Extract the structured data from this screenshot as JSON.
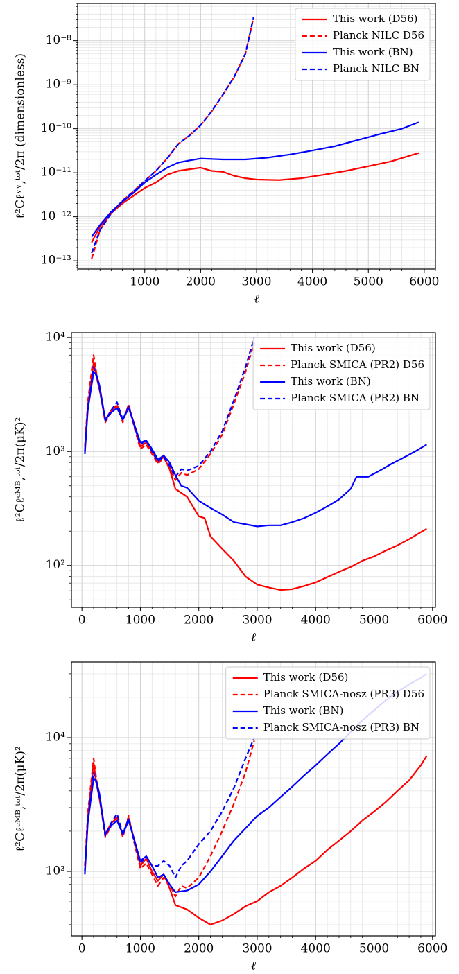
{
  "chart_data": [
    {
      "type": "line",
      "log_y": true,
      "grid": true,
      "legend": "upper right",
      "xlabel": "ℓ",
      "ylabel": "ℓ²Cℓʸʸ,ᵗᵒᵗ/2π (dimensionless)",
      "xlim": [
        -200,
        6200
      ],
      "ylim": [
        6.5e-14,
        7e-08
      ],
      "xticks": [
        1000,
        2000,
        3000,
        4000,
        5000,
        6000
      ],
      "yticks": [
        {
          "value": 1e-13,
          "label": "10⁻¹³"
        },
        {
          "value": 1e-12,
          "label": "10⁻¹²"
        },
        {
          "value": 1e-11,
          "label": "10⁻¹¹"
        },
        {
          "value": 1e-10,
          "label": "10⁻¹⁰"
        },
        {
          "value": 1e-09,
          "label": "10⁻⁹"
        },
        {
          "value": 1e-08,
          "label": "10⁻⁸"
        }
      ],
      "series": [
        {
          "name": "This work (D56)",
          "color": "#ff0000",
          "linestyle": "solid",
          "x": [
            50,
            200,
            400,
            600,
            800,
            1000,
            1200,
            1400,
            1600,
            1800,
            2000,
            2200,
            2400,
            2600,
            2800,
            3000,
            3400,
            3800,
            4200,
            4600,
            5000,
            5400,
            5900
          ],
          "values": [
            2.6e-13,
            6e-13,
            1.2e-12,
            2e-12,
            3e-12,
            4.5e-12,
            6e-12,
            9e-12,
            1.1e-11,
            1.2e-11,
            1.3e-11,
            1.1e-11,
            1.05e-11,
            8.5e-12,
            7.5e-12,
            7e-12,
            6.8e-12,
            7.5e-12,
            9e-12,
            1.1e-11,
            1.4e-11,
            1.8e-11,
            2.8e-11
          ]
        },
        {
          "name": "Planck NILC D56",
          "color": "#ff0000",
          "linestyle": "dashed",
          "x": [
            50,
            200,
            400,
            600,
            800,
            1000,
            1200,
            1400,
            1600,
            1800,
            2000,
            2200,
            2400,
            2600,
            2800,
            2950
          ],
          "values": [
            1.1e-13,
            5e-13,
            1.2e-12,
            2.3e-12,
            3.8e-12,
            6.5e-12,
            1.1e-11,
            2.1e-11,
            4.5e-11,
            7e-11,
            1.2e-10,
            2.5e-10,
            6e-10,
            1.5e-09,
            5e-09,
            3.5e-08
          ]
        },
        {
          "name": "This work (BN)",
          "color": "#0000ff",
          "linestyle": "solid",
          "x": [
            50,
            200,
            400,
            600,
            800,
            1000,
            1200,
            1400,
            1600,
            1800,
            2000,
            2400,
            2800,
            3200,
            3600,
            4000,
            4400,
            4800,
            5200,
            5600,
            5900
          ],
          "values": [
            3.5e-13,
            6.5e-13,
            1.3e-12,
            2.2e-12,
            3.5e-12,
            6e-12,
            9e-12,
            1.3e-11,
            1.7e-11,
            1.9e-11,
            2.1e-11,
            2e-11,
            2e-11,
            2.2e-11,
            2.6e-11,
            3.2e-11,
            4e-11,
            5.5e-11,
            7.5e-11,
            1e-10,
            1.4e-10
          ]
        },
        {
          "name": "Planck NILC BN",
          "color": "#0000ff",
          "linestyle": "dashed",
          "x": [
            50,
            200,
            400,
            600,
            800,
            1000,
            1200,
            1400,
            1600,
            1800,
            2000,
            2200,
            2400,
            2600,
            2800,
            2950
          ],
          "values": [
            1.5e-13,
            5e-13,
            1.2e-12,
            2.3e-12,
            3.8e-12,
            6.5e-12,
            1.1e-11,
            2.1e-11,
            4.5e-11,
            7e-11,
            1.2e-10,
            2.5e-10,
            6e-10,
            1.5e-09,
            5e-09,
            3.5e-08
          ]
        }
      ]
    },
    {
      "type": "line",
      "log_y": true,
      "grid": true,
      "legend": "upper right",
      "xlabel": "ℓ",
      "ylabel": "ℓ²Cℓᶜᴹᴮ,ᵗᵒᵗ/2π(μK)²",
      "xlim": [
        -180,
        6050
      ],
      "ylim": [
        43,
        11000
      ],
      "xticks": [
        0,
        1000,
        2000,
        3000,
        4000,
        5000,
        6000
      ],
      "yticks": [
        {
          "value": 100,
          "label": "10²"
        },
        {
          "value": 1000,
          "label": "10³"
        },
        {
          "value": 10000,
          "label": "10⁴"
        }
      ],
      "series": [
        {
          "name": "This work (D56)",
          "color": "#ff0000",
          "linestyle": "solid",
          "x": [
            50,
            100,
            200,
            250,
            300,
            400,
            500,
            600,
            700,
            800,
            900,
            1000,
            1100,
            1200,
            1300,
            1400,
            1500,
            1600,
            1800,
            2000,
            2100,
            2200,
            2400,
            2600,
            2800,
            3000,
            3200,
            3400,
            3600,
            3800,
            4000,
            4200,
            4400,
            4600,
            4800,
            5000,
            5200,
            5400,
            5600,
            5900
          ],
          "values": [
            1000,
            2500,
            6000,
            4500,
            3500,
            1900,
            2300,
            2500,
            1900,
            2500,
            1700,
            1100,
            1200,
            1000,
            800,
            900,
            700,
            470,
            400,
            270,
            260,
            180,
            140,
            110,
            80,
            68,
            64,
            61,
            62,
            66,
            71,
            79,
            88,
            97,
            110,
            120,
            135,
            150,
            170,
            210
          ]
        },
        {
          "name": "Planck SMICA (PR2) D56",
          "color": "#ff0000",
          "linestyle": "dashed",
          "x": [
            50,
            100,
            200,
            250,
            300,
            400,
            500,
            600,
            700,
            800,
            900,
            1000,
            1100,
            1200,
            1300,
            1400,
            1500,
            1600,
            1700,
            1800,
            2000,
            2200,
            2400,
            2600,
            2800,
            2950
          ],
          "values": [
            1100,
            2700,
            7000,
            4800,
            3600,
            1800,
            2200,
            2600,
            1800,
            2600,
            1600,
            1050,
            1150,
            950,
            780,
            880,
            720,
            560,
            650,
            620,
            700,
            950,
            1400,
            2600,
            5000,
            9000
          ]
        },
        {
          "name": "This work (BN)",
          "color": "#0000ff",
          "linestyle": "solid",
          "x": [
            50,
            100,
            200,
            250,
            300,
            400,
            500,
            600,
            700,
            800,
            900,
            1000,
            1100,
            1200,
            1300,
            1400,
            1500,
            1600,
            1700,
            1800,
            2000,
            2200,
            2400,
            2600,
            2800,
            3000,
            3200,
            3400,
            3600,
            3800,
            4000,
            4200,
            4400,
            4600,
            4700,
            4900,
            5100,
            5300,
            5500,
            5700,
            5900
          ],
          "values": [
            950,
            2300,
            5000,
            4700,
            3800,
            1900,
            2200,
            2400,
            1900,
            2400,
            1700,
            1200,
            1250,
            1050,
            850,
            920,
            800,
            620,
            500,
            480,
            370,
            320,
            280,
            240,
            230,
            220,
            225,
            225,
            240,
            260,
            290,
            330,
            380,
            470,
            600,
            600,
            680,
            780,
            880,
            1000,
            1150
          ]
        },
        {
          "name": "Planck SMICA (PR2) BN",
          "color": "#0000ff",
          "linestyle": "dashed",
          "x": [
            50,
            100,
            200,
            250,
            300,
            400,
            500,
            600,
            700,
            800,
            900,
            1000,
            1100,
            1200,
            1300,
            1400,
            1500,
            1600,
            1700,
            1800,
            2000,
            2200,
            2400,
            2600,
            2800,
            2950
          ],
          "values": [
            1000,
            2400,
            5500,
            4500,
            3600,
            1850,
            2300,
            2700,
            1900,
            2500,
            1650,
            1150,
            1250,
            1000,
            820,
            900,
            750,
            600,
            700,
            680,
            750,
            1000,
            1500,
            2800,
            5500,
            10000
          ]
        }
      ]
    },
    {
      "type": "line",
      "log_y": true,
      "grid": true,
      "legend": "upper right",
      "xlabel": "ℓ",
      "ylabel": "ℓ²Cℓᶜᴹᴮ,ᵗᵒᵗ/2π(μK)²",
      "xlim": [
        -180,
        6050
      ],
      "ylim": [
        330,
        36700
      ],
      "xticks": [
        0,
        1000,
        2000,
        3000,
        4000,
        5000,
        6000
      ],
      "yticks": [
        {
          "value": 1000,
          "label": "10³"
        },
        {
          "value": 10000,
          "label": "10⁴"
        }
      ],
      "series": [
        {
          "name": "This work (D56)",
          "color": "#ff0000",
          "linestyle": "solid",
          "x": [
            50,
            100,
            200,
            250,
            300,
            400,
            500,
            600,
            700,
            800,
            900,
            1000,
            1100,
            1200,
            1300,
            1400,
            1500,
            1600,
            1800,
            2000,
            2200,
            2400,
            2600,
            2800,
            3000,
            3200,
            3400,
            3600,
            3800,
            4000,
            4200,
            4400,
            4600,
            4800,
            5000,
            5200,
            5400,
            5600,
            5800,
            5900
          ],
          "values": [
            1000,
            2500,
            6500,
            4500,
            3500,
            1900,
            2300,
            2500,
            1900,
            2500,
            1700,
            1100,
            1250,
            1000,
            850,
            950,
            750,
            560,
            520,
            450,
            400,
            430,
            480,
            550,
            600,
            700,
            780,
            900,
            1050,
            1200,
            1450,
            1700,
            2000,
            2400,
            2800,
            3300,
            4000,
            4800,
            6200,
            7300
          ]
        },
        {
          "name": "Planck SMICA-nosz (PR3) D56",
          "color": "#ff0000",
          "linestyle": "dashed",
          "x": [
            50,
            100,
            200,
            250,
            300,
            400,
            500,
            600,
            700,
            800,
            900,
            1000,
            1100,
            1200,
            1300,
            1400,
            1500,
            1600,
            1700,
            1800,
            2000,
            2200,
            2400,
            2600,
            2800,
            2950
          ],
          "values": [
            1100,
            2700,
            7000,
            4800,
            3600,
            1800,
            2200,
            2600,
            1800,
            2600,
            1600,
            1050,
            1150,
            950,
            780,
            900,
            800,
            650,
            780,
            750,
            900,
            1300,
            2000,
            3200,
            5500,
            9500
          ]
        },
        {
          "name": "This work (BN)",
          "color": "#0000ff",
          "linestyle": "solid",
          "x": [
            50,
            100,
            200,
            250,
            300,
            400,
            500,
            600,
            700,
            800,
            900,
            1000,
            1100,
            1200,
            1300,
            1400,
            1500,
            1600,
            1800,
            2000,
            2200,
            2400,
            2600,
            2800,
            3000,
            3200,
            3400,
            3600,
            3800,
            4000,
            4200,
            4400,
            4600,
            4800,
            5000,
            5200,
            5400,
            5600,
            5800,
            5900
          ],
          "values": [
            950,
            2300,
            5000,
            4700,
            3800,
            1900,
            2200,
            2400,
            1900,
            2400,
            1700,
            1200,
            1300,
            1100,
            900,
            950,
            800,
            700,
            720,
            800,
            1000,
            1300,
            1700,
            2100,
            2600,
            3000,
            3600,
            4300,
            5200,
            6200,
            7500,
            9000,
            11000,
            13500,
            16000,
            19000,
            22000,
            25000,
            28000,
            30000
          ]
        },
        {
          "name": "Planck SMICA-nosz (PR3) BN",
          "color": "#0000ff",
          "linestyle": "dashed",
          "x": [
            50,
            100,
            200,
            250,
            300,
            400,
            500,
            600,
            700,
            800,
            900,
            1000,
            1100,
            1200,
            1300,
            1400,
            1500,
            1600,
            1700,
            1800,
            2000,
            2200,
            2400,
            2600,
            2800,
            2950
          ],
          "values": [
            1000,
            2400,
            5500,
            4500,
            3600,
            1850,
            2300,
            2700,
            1900,
            2500,
            1650,
            1150,
            1300,
            1100,
            1100,
            1200,
            1100,
            900,
            1100,
            1200,
            1600,
            2000,
            2800,
            4200,
            7000,
            10000
          ]
        }
      ]
    }
  ]
}
